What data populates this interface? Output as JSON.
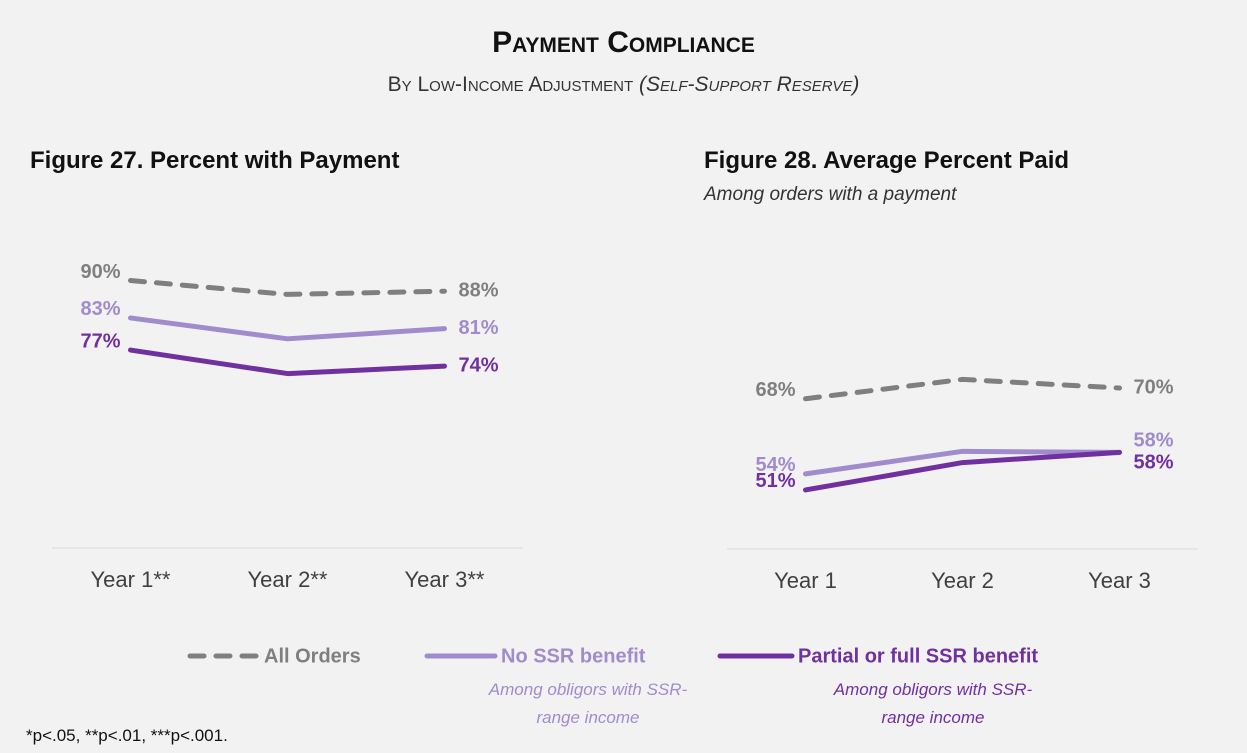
{
  "header": {
    "title": "Payment Compliance",
    "subtitle": "By Low-Income Adjustment",
    "subtitle_italic": "(Self-Support Reserve)"
  },
  "chart_data": [
    {
      "type": "line",
      "title": "Figure 27. Percent with Payment",
      "categories": [
        "Year 1**",
        "Year 2**",
        "Year 3**"
      ],
      "ylim": [
        40,
        100
      ],
      "series": [
        {
          "name": "All Orders",
          "color": "#7f7f7f",
          "dashed": true,
          "values": [
            90,
            87.4,
            88
          ],
          "value_labels": [
            "90%",
            null,
            "88%"
          ]
        },
        {
          "name": "No SSR benefit",
          "color": "#a08ccc",
          "values": [
            83,
            79.1,
            81
          ],
          "value_labels": [
            "83%",
            null,
            "81%"
          ]
        },
        {
          "name": "Partial or full SSR benefit",
          "color": "#7030a0",
          "values": [
            77,
            72.6,
            74
          ],
          "value_labels": [
            "77%",
            null,
            "74%"
          ]
        }
      ]
    },
    {
      "type": "line",
      "title": "Figure 28. Average Percent Paid",
      "subtitle": "Among orders with a payment",
      "categories": [
        "Year 1",
        "Year 2",
        "Year 3"
      ],
      "ylim": [
        40,
        100
      ],
      "series": [
        {
          "name": "All Orders",
          "color": "#7f7f7f",
          "dashed": true,
          "values": [
            68,
            71.6,
            70
          ],
          "value_labels": [
            "68%",
            null,
            "70%"
          ]
        },
        {
          "name": "No SSR benefit",
          "color": "#a08ccc",
          "values": [
            54,
            58.2,
            58
          ],
          "value_labels": [
            "54%",
            null,
            "58%"
          ]
        },
        {
          "name": "Partial or full SSR benefit",
          "color": "#7030a0",
          "values": [
            51,
            56.1,
            58
          ],
          "value_labels": [
            "51%",
            null,
            "58%"
          ]
        }
      ]
    }
  ],
  "legend_notes": [
    "Among obligors with SSR-range income",
    "Among obligors with SSR-range income"
  ],
  "footnote": "*p<.05, **p<.01, ***p<.001."
}
